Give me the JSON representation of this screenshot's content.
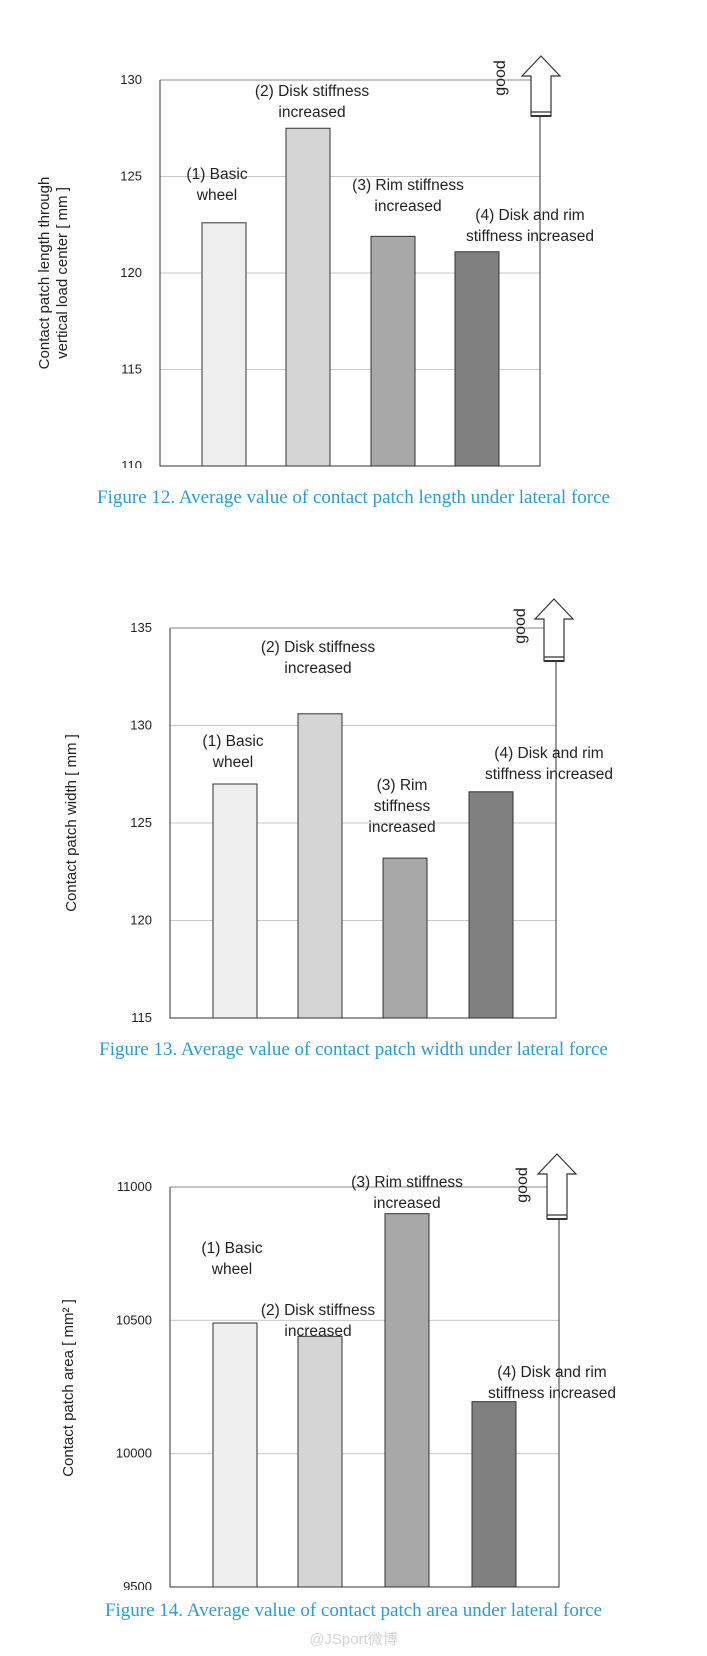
{
  "chart_data": [
    {
      "type": "bar",
      "categories": [
        "(1) Basic wheel",
        "(2) Disk stiffness increased",
        "(3) Rim stiffness increased",
        "(4) Disk and rim stiffness increased"
      ],
      "bar_labels": [
        [
          "(1) Basic",
          "wheel"
        ],
        [
          "(2) Disk stiffness",
          "increased"
        ],
        [
          "(3) Rim stiffness",
          "increased"
        ],
        [
          "(4) Disk and rim",
          "stiffness increased"
        ]
      ],
      "values": [
        122.6,
        127.5,
        121.9,
        121.1
      ],
      "ylabel_lines": [
        "Contact patch length through",
        "vertical load center  [ mm ]"
      ],
      "ylim": [
        110,
        130
      ],
      "yticks": [
        110,
        115,
        120,
        125,
        130
      ],
      "yticklabels": [
        "110",
        "115",
        "120",
        "125",
        "130"
      ],
      "grid": true,
      "good_text": "good",
      "colors": [
        "#efefef",
        "#d5d5d5",
        "#a8a8a8",
        "#808080"
      ],
      "caption": "Figure 12. Average value of contact patch length under lateral force"
    },
    {
      "type": "bar",
      "categories": [
        "(1) Basic wheel",
        "(2) Disk stiffness increased",
        "(3) Rim stiffness increased",
        "(4) Disk and rim stiffness increased"
      ],
      "bar_labels": [
        [
          "(1) Basic",
          "wheel"
        ],
        [
          "(2) Disk stiffness",
          "increased"
        ],
        [
          "(3) Rim",
          "stiffness",
          "increased"
        ],
        [
          "(4) Disk and rim",
          "stiffness increased"
        ]
      ],
      "values": [
        127.0,
        130.6,
        123.2,
        126.6
      ],
      "ylabel_lines": [
        "Contact patch width  [ mm ]"
      ],
      "ylim": [
        115,
        135
      ],
      "yticks": [
        115,
        120,
        125,
        130,
        135
      ],
      "yticklabels": [
        "115",
        "120",
        "125",
        "130",
        "135"
      ],
      "grid": true,
      "good_text": "good",
      "colors": [
        "#efefef",
        "#d5d5d5",
        "#a8a8a8",
        "#808080"
      ],
      "caption": "Figure 13. Average value of contact patch width under lateral force"
    },
    {
      "type": "bar",
      "categories": [
        "(1) Basic wheel",
        "(2) Disk stiffness increased",
        "(3) Rim stiffness increased",
        "(4) Disk and rim stiffness increased"
      ],
      "bar_labels": [
        [
          "(1) Basic",
          "wheel"
        ],
        [
          "(2) Disk stiffness",
          "increased"
        ],
        [
          "(3) Rim stiffness",
          "increased"
        ],
        [
          "(4) Disk and rim",
          "stiffness increased"
        ]
      ],
      "values": [
        10490,
        10440,
        10900,
        10195
      ],
      "ylabel_lines": [
        "Contact patch area  [ mm² ]"
      ],
      "ylim": [
        9500,
        11000
      ],
      "yticks": [
        9500,
        10000,
        10500,
        11000
      ],
      "yticklabels": [
        "9500",
        "10000",
        "10500",
        "11000"
      ],
      "grid": true,
      "good_text": "good",
      "colors": [
        "#efefef",
        "#d5d5d5",
        "#a8a8a8",
        "#808080"
      ],
      "caption": "Figure 14. Average value of contact patch area under lateral force"
    }
  ],
  "watermark": "@JSport微博"
}
